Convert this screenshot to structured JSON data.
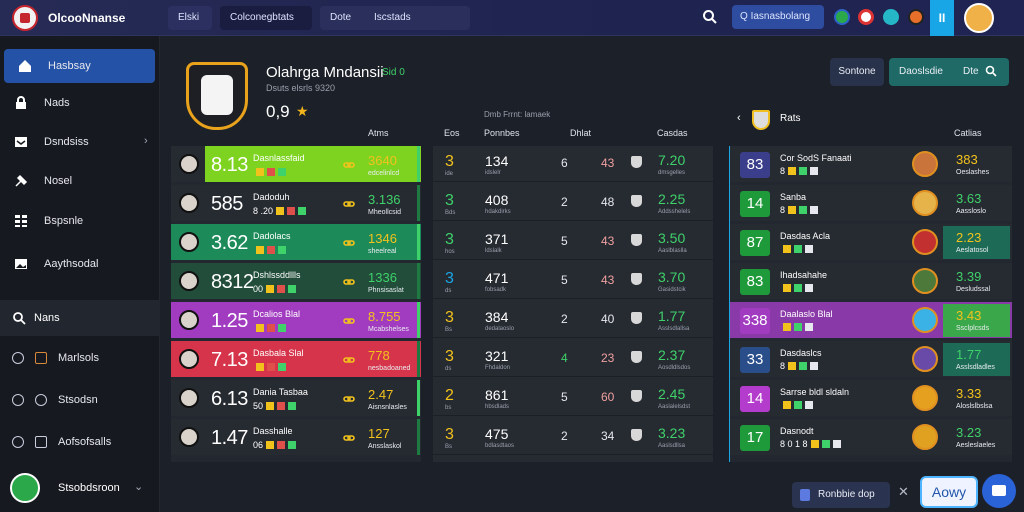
{
  "topbar": {
    "brand": "OlcooNnanse",
    "tabs": [
      "Elski",
      "Colconegbtats"
    ],
    "tab3_a": "Dote",
    "tab3_b": "Iscstads",
    "search_label": "Iasnasbolang",
    "menu_icon": "II"
  },
  "sidebar": {
    "items": [
      {
        "label": "Hasbsay",
        "icon": "home-icon"
      },
      {
        "label": "Nads",
        "icon": "lock-icon"
      },
      {
        "label": "Dsndsiss",
        "icon": "inbox-icon"
      },
      {
        "label": "Nosel",
        "icon": "tools-icon"
      },
      {
        "label": "Bspsnle",
        "icon": "grid-icon"
      },
      {
        "label": "Aaythsodal",
        "icon": "image-icon"
      }
    ],
    "section": "Nans",
    "sub_items": [
      "Marlsols",
      "Stsodsn",
      "Aofsofsalls"
    ],
    "user_name": "Stsobdsroon"
  },
  "header": {
    "name": "Olahrga Mndansii",
    "tag": "Sid 0",
    "subtitle": "Dsuts elsrls 9320",
    "score": "0,9",
    "star": "★",
    "btn1": "Sontone",
    "btn2_a": "Daoslsdie",
    "btn2_b": "Dte",
    "mid_caption": "Dmb Frrnt: lamaek"
  },
  "col_headers": {
    "p1": "Atms",
    "p2a": "Eos",
    "p2b": "Ponnbes",
    "p2c": "Dhlat",
    "p2d": "Casdas",
    "p3": "Catlias"
  },
  "panel1": [
    {
      "big": "8.13",
      "name": "Dasnlassfaid",
      "val": "3640",
      "vsub": "edcelinlcd",
      "accent": "#7ed321"
    },
    {
      "big": "585",
      "name": "Dadoduh",
      "sub": "8 .20",
      "val": "3.136",
      "vsub": "Mheollcsid",
      "accent": "#2a2e36"
    },
    {
      "big": "3.62",
      "name": "Dadolacs",
      "val": "1346",
      "vsub": "sheelreal",
      "accent": "#1d8a5a"
    },
    {
      "big": "8312",
      "name": "Dshlssddllls",
      "sub": "00",
      "val": "1336",
      "vsub": "Phnsisaslat",
      "accent": "#1e4f3c"
    },
    {
      "big": "1.25",
      "name": "Dcalios Blal",
      "val": "8.755",
      "vsub": "Mcabshelses",
      "accent": "#a13cc0"
    },
    {
      "big": "7.13",
      "name": "Dasbala Slal",
      "val": "778",
      "vsub": "nesbadoaned",
      "accent": "#d6344a"
    },
    {
      "big": "6.13",
      "name": "Dania Tasbaa",
      "sub": "50",
      "val": "2.47",
      "vsub": "Aisnsnlasles",
      "accent": "#2a2e36"
    },
    {
      "big": "1.47",
      "name": "Dasshalle",
      "sub": "06",
      "val": "127",
      "vsub": "Ansslaskol",
      "accent": "#2a2e36"
    }
  ],
  "panel2": [
    {
      "n1": "3",
      "s1": "ide",
      "n2": "134",
      "s2": "idslelr",
      "n3": "6",
      "n4": "43",
      "n5": "7.20",
      "s5": "dmsgelles"
    },
    {
      "n1": "3",
      "s1": "Bds",
      "n2": "408",
      "s2": "hdakdirks",
      "n3": "2",
      "n4": "48",
      "n5": "2.25",
      "s5": "Addsshelels"
    },
    {
      "n1": "3",
      "s1": "hos",
      "n2": "371",
      "s2": "ldslalk",
      "n3": "5",
      "n4": "43",
      "n5": "3.50",
      "s5": "Aaslblaslla"
    },
    {
      "n1": "3",
      "s1": "ds",
      "n2": "471",
      "s2": "fobsadk",
      "n3": "5",
      "n4": "43",
      "n5": "3.70",
      "s5": "Gasidstcik"
    },
    {
      "n1": "3",
      "s1": "Bs",
      "n2": "384",
      "s2": "dedalaoslo",
      "n3": "2",
      "n4": "40",
      "n5": "1.77",
      "s5": "Asslsdlallsa"
    },
    {
      "n1": "3",
      "s1": "ds",
      "n2": "321",
      "s2": "Fhdaldon",
      "n3": "4",
      "n4": "23",
      "n5": "2.37",
      "s5": "Aosdldlsdos"
    },
    {
      "n1": "2",
      "s1": "bs",
      "n2": "861",
      "s2": "hbsdlads",
      "n3": "5",
      "n4": "60",
      "n5": "2.45",
      "s5": "Aaslalelsdst"
    },
    {
      "n1": "3",
      "s1": "Bs",
      "n2": "475",
      "s2": "bdlasdtaos",
      "n3": "2",
      "n4": "34",
      "n5": "3.23",
      "s5": "Aaslsdllsa"
    }
  ],
  "panel3_title": "Rats",
  "panel3": [
    {
      "box": "83",
      "name": "Cor SodS Fanaati",
      "sub": "8",
      "val": "383",
      "vsub": "Oeslashes",
      "boxcolor": "#3b3e8a",
      "vbox": ""
    },
    {
      "box": "14",
      "name": "Sanba",
      "sub": "8",
      "val": "3.63",
      "vsub": "Aassloslo",
      "boxcolor": "#1e9a3a",
      "vbox": ""
    },
    {
      "box": "87",
      "name": "Dasdas Acla",
      "sub": "",
      "val": "2.23",
      "vsub": "Aeslatosol",
      "boxcolor": "#1e9a3a",
      "vbox": "#1d6b56"
    },
    {
      "box": "83",
      "name": "Ihadsahahe",
      "sub": "",
      "val": "3.39",
      "vsub": "Desludssal",
      "boxcolor": "#1e9a3a",
      "vbox": ""
    },
    {
      "box": "338",
      "name": "Daalaslo Blal",
      "sub": "",
      "val": "3.43",
      "vsub": "Ssclplcsds",
      "boxcolor": "#a13cc0",
      "vbox": "#3aa84a"
    },
    {
      "box": "33",
      "name": "Dasdaslcs",
      "sub": "8",
      "val": "1.77",
      "vsub": "Asslsdladles",
      "boxcolor": "#2a4e8a",
      "vbox": "#1d6b56"
    },
    {
      "box": "14",
      "name": "Sarrse bldl sldaln",
      "sub": "",
      "val": "3.33",
      "vsub": "Aloslslbslsa",
      "boxcolor": "#b43ccc",
      "vbox": ""
    },
    {
      "box": "17",
      "name": "Dasnodt",
      "sub": "8 0 1 8",
      "val": "3.23",
      "vsub": "Aesleslaeles",
      "boxcolor": "#1e9a3a",
      "vbox": ""
    }
  ],
  "bottom": {
    "btn": "Ronbbie dop",
    "close": "✕",
    "now": "Aowy"
  },
  "colors": {
    "accent_green": "#3fd16a",
    "accent_yellow": "#f2c21c",
    "accent_red": "#e0504a",
    "accent_blue": "#19a6e6"
  }
}
